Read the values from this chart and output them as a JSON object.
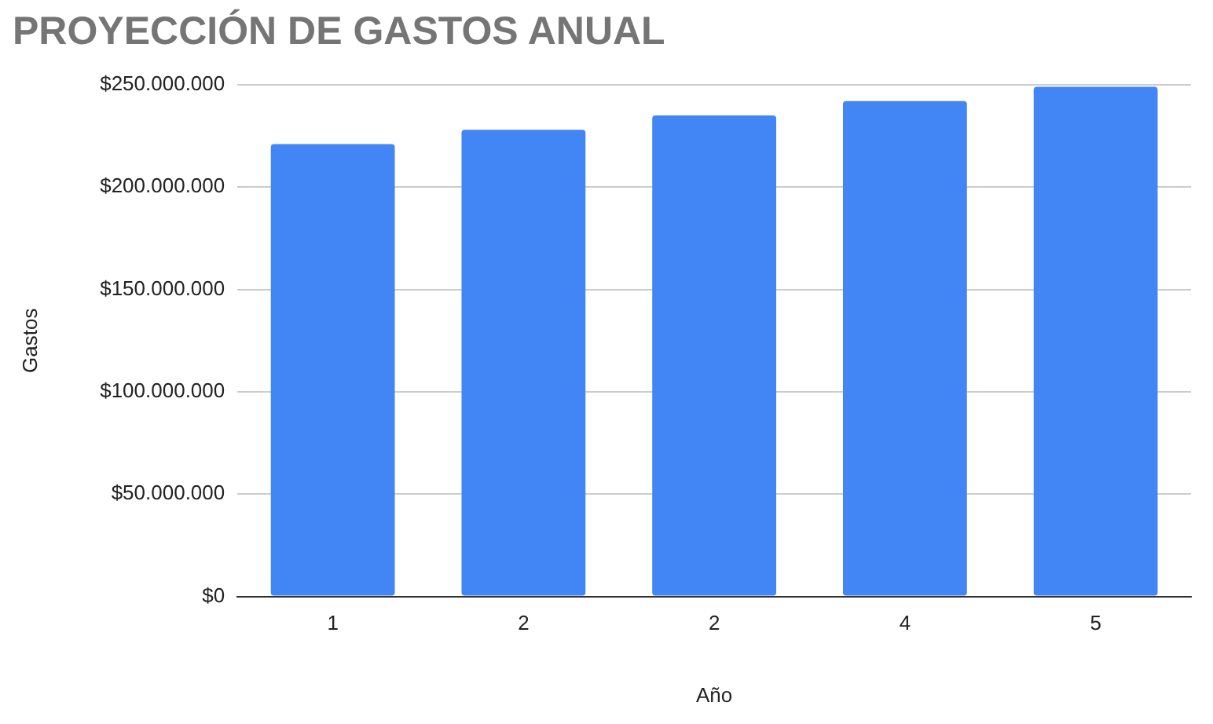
{
  "chart_data": {
    "type": "bar",
    "title": "PROYECCIÓN DE GASTOS ANUAL",
    "xlabel": "Año",
    "ylabel": "Gastos",
    "categories": [
      "1",
      "2",
      "2",
      "4",
      "5"
    ],
    "series": [
      {
        "color": "#4285f4",
        "values": [
          221000000,
          228000000,
          235000000,
          242000000,
          249000000
        ]
      }
    ],
    "ylim": [
      0,
      250000000
    ],
    "yticks": [
      {
        "value": 0,
        "label": "$0"
      },
      {
        "value": 50000000,
        "label": "$50.000.000"
      },
      {
        "value": 100000000,
        "label": "$100.000.000"
      },
      {
        "value": 150000000,
        "label": "$150.000.000"
      },
      {
        "value": 200000000,
        "label": "$200.000.000"
      },
      {
        "value": 250000000,
        "label": "$250.000.000"
      }
    ],
    "grid": "y",
    "legend": false
  }
}
